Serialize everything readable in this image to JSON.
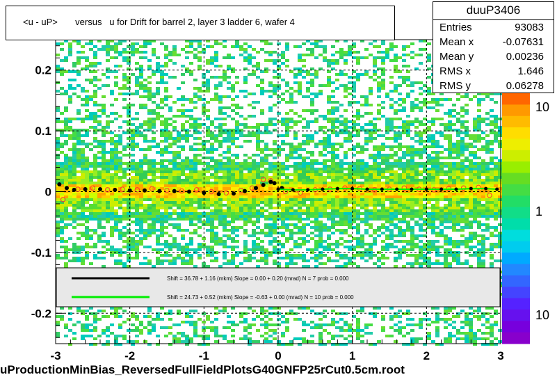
{
  "title": "<u - uP>       versus   u for Drift for barrel 2, layer 3 ladder 6, wafer 4",
  "stats": {
    "name": "duuP3406",
    "rows": [
      {
        "label": "Entries",
        "value": "93083"
      },
      {
        "label": "Mean x",
        "value": "-0.07631"
      },
      {
        "label": "Mean y",
        "value": "0.00236"
      },
      {
        "label": "RMS x",
        "value": "1.646"
      },
      {
        "label": "RMS y",
        "value": "0.06278"
      }
    ]
  },
  "footer": "uProductionMinBias_ReversedFullFieldPlotsG40GNFP25rCut0.5cm.root",
  "colors": {
    "black_fit": "#000000",
    "green_fit": "#00ee00",
    "points_open": "#ff3333",
    "legend_bg": "#e8e8e8"
  },
  "chart_data": {
    "type": "scatter",
    "xlim": [
      -3,
      3
    ],
    "ylim": [
      -0.25,
      0.25
    ],
    "x_ticks": [
      "-3",
      "-2",
      "-1",
      "0",
      "1",
      "2",
      "3"
    ],
    "y_ticks": [
      "0.2",
      "0.1",
      "0",
      "-0.1",
      "-0.2"
    ],
    "colorbar_labels": [
      "10",
      "1",
      "10"
    ],
    "legend": [
      {
        "text": "Shift =    36.78 + 1.16 (mkm) Slope =    0.00 + 0.20 (mrad)  N = 7 prob = 0.000",
        "color": "#000000"
      },
      {
        "text": "Shift =    24.73 + 0.52 (mkm) Slope =    -0.63 + 0.00 (mrad)  N = 10 prob = 0.000",
        "color": "#00ee00"
      }
    ],
    "profile_black": {
      "x": [
        -2.95,
        -2.85,
        -2.75,
        -2.6,
        -2.4,
        -2.2,
        -2.0,
        -1.8,
        -1.6,
        -1.4,
        -1.2,
        -1.0,
        -0.8,
        -0.6,
        -0.45,
        -0.3,
        -0.2,
        -0.1,
        -0.05,
        0.05
      ],
      "y": [
        0.012,
        0.006,
        0.003,
        0.004,
        0.004,
        0.003,
        0.002,
        0.002,
        0.001,
        0.001,
        0.0,
        -0.002,
        -0.004,
        -0.003,
        0.001,
        0.006,
        0.011,
        0.016,
        0.014,
        0.006
      ]
    },
    "profile_green": {
      "x": [
        0.0,
        0.2,
        0.4,
        0.6,
        0.8,
        1.0,
        1.2,
        1.4,
        1.6,
        1.8,
        2.0,
        2.2,
        2.4,
        2.6,
        2.8,
        2.95
      ],
      "y": [
        0.004,
        0.003,
        0.003,
        0.004,
        0.005,
        0.005,
        0.004,
        0.004,
        0.004,
        0.004,
        0.004,
        0.004,
        0.004,
        0.005,
        0.005,
        0.004
      ]
    },
    "profile_open": {
      "x": [
        -2.9,
        -2.7,
        -2.5,
        -2.3,
        -2.1,
        -1.9,
        -1.7,
        -1.5,
        -1.3,
        -1.1,
        -0.9,
        -0.7,
        -0.5,
        -0.35,
        -0.2,
        -0.1,
        0.1,
        0.3,
        0.5,
        0.7,
        0.9,
        1.1,
        1.3,
        1.5,
        1.7,
        1.9,
        2.1,
        2.3,
        2.5,
        2.7,
        2.85
      ],
      "y": [
        -0.013,
        0.004,
        0.006,
        0.003,
        0.004,
        0.003,
        0.005,
        0.002,
        0.001,
        0.003,
        0.0,
        -0.002,
        0.002,
        0.006,
        0.02,
        0.018,
        0.0,
        -0.002,
        0.003,
        0.004,
        0.006,
        0.005,
        0.003,
        0.004,
        0.006,
        0.004,
        0.003,
        0.005,
        0.006,
        0.007,
        -0.006
      ]
    }
  }
}
